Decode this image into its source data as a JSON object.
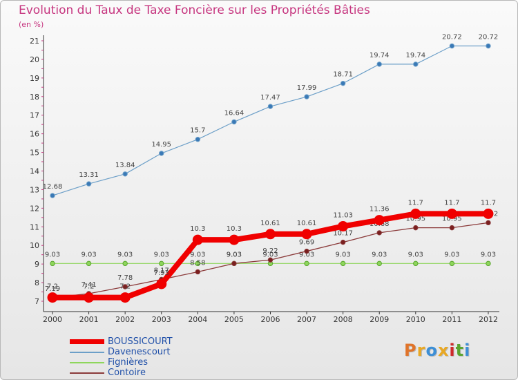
{
  "title": "Evolution du Taux de Taxe Foncière sur les Propriétés Bâties",
  "unit_label": "(en %)",
  "logo": {
    "text": "Proxiti",
    "colors": [
      "#e0742a",
      "#e8a825",
      "#3d8fd6",
      "#e8a825",
      "#cf2a2a",
      "#5aa52f",
      "#3d8fd6"
    ]
  },
  "chart_data": {
    "type": "line",
    "title": "Evolution du Taux de Taxe Foncière sur les Propriétés Bâties",
    "ylabel": "(en %)",
    "xlabel": "",
    "x": [
      "2000",
      "2001",
      "2002",
      "2003",
      "2004",
      "2005",
      "2006",
      "2007",
      "2008",
      "2009",
      "2010",
      "2011",
      "2012"
    ],
    "ylim": [
      7,
      21
    ],
    "yticks": [
      7,
      8,
      9,
      10,
      11,
      12,
      13,
      14,
      15,
      16,
      17,
      18,
      19,
      20,
      21
    ],
    "grid": false,
    "legend": "bottom-left",
    "series": [
      {
        "name": "Davenescourt",
        "color": "#6c9fc8",
        "values": [
          12.68,
          13.31,
          13.84,
          14.95,
          15.7,
          16.64,
          17.47,
          17.99,
          18.71,
          19.74,
          19.74,
          20.72,
          20.72
        ],
        "labels": [
          "12.68",
          "13.31",
          "13.84",
          "14.95",
          "15.7",
          "16.64",
          "17.47",
          "17.99",
          "18.71",
          "19.74",
          "19.74",
          "20.72",
          "20.72"
        ]
      },
      {
        "name": "Fignières",
        "color": "#8ed65c",
        "values": [
          9.03,
          9.03,
          9.03,
          9.03,
          9.03,
          9.03,
          9.03,
          9.03,
          9.03,
          9.03,
          9.03,
          9.03,
          9.03
        ],
        "labels": [
          "9.03",
          "9.03",
          "9.03",
          "9.03",
          "9.03",
          "9.03",
          "9.03",
          "9.03",
          "9.03",
          "9.03",
          "9.03",
          "9.03",
          "9.03"
        ]
      },
      {
        "name": "Contoire",
        "color": "#8b3a3a",
        "values": [
          7.19,
          7.41,
          7.78,
          8.17,
          8.58,
          9.03,
          9.22,
          9.69,
          10.17,
          10.68,
          10.95,
          10.95,
          11.22
        ],
        "labels": [
          "7.19",
          "7.41",
          "7.78",
          "8.17",
          "8.58",
          "9.03",
          "9.22",
          "9.69",
          "10.17",
          "10.68",
          "10.95",
          "10.95",
          "11.22"
        ]
      },
      {
        "name": "BOUSSICOURT",
        "color": "#f00000",
        "values": [
          7.2,
          7.2,
          7.2,
          7.93,
          10.3,
          10.3,
          10.61,
          10.61,
          11.03,
          11.36,
          11.7,
          11.7,
          11.7
        ],
        "labels": [
          "7.2",
          "7.2",
          "7.2",
          "7.93",
          "10.3",
          "10.3",
          "10.61",
          "10.61",
          "11.03",
          "11.36",
          "11.7",
          "11.7",
          "11.7"
        ]
      }
    ]
  },
  "legend_items": [
    {
      "name": "BOUSSICOURT",
      "color": "#f00000"
    },
    {
      "name": "Davenescourt",
      "color": "#6c9fc8"
    },
    {
      "name": "Fignières",
      "color": "#8ed65c"
    },
    {
      "name": "Contoire",
      "color": "#8b3a3a"
    }
  ]
}
